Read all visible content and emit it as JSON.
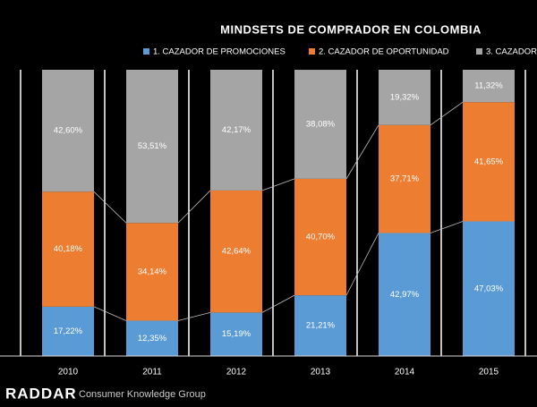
{
  "chart_data": {
    "type": "stacked_bar",
    "title": "MINDSETS DE COMPRADOR EN COLOMBIA",
    "categories": [
      "2010",
      "2011",
      "2012",
      "2013",
      "2014",
      "2015"
    ],
    "ylim": [
      0,
      100
    ],
    "series": [
      {
        "name": "1. CAZADOR DE PROMOCIONES",
        "color": "#5b9bd5",
        "values": [
          17.22,
          12.35,
          15.19,
          21.21,
          42.97,
          47.03
        ],
        "value_labels": [
          "17,22%",
          "12,35%",
          "15,19%",
          "21,21%",
          "42,97%",
          "47,03%"
        ]
      },
      {
        "name": "2. CAZADOR DE OPORTUNIDAD",
        "color": "#ed7d31",
        "values": [
          40.18,
          34.14,
          42.64,
          40.7,
          37.71,
          41.65
        ],
        "value_labels": [
          "40,18%",
          "34,14%",
          "42,64%",
          "40,70%",
          "37,71%",
          "41,65%"
        ]
      },
      {
        "name": "3. CAZADOR",
        "color": "#a5a5a5",
        "values": [
          42.6,
          53.51,
          42.17,
          38.08,
          19.32,
          11.32
        ],
        "value_labels": [
          "42,60%",
          "53,51%",
          "42,17%",
          "38,08%",
          "19,32%",
          "11,32%"
        ]
      }
    ]
  },
  "footer": {
    "logo": "RADDAR",
    "brand": "Consumer Knowledge Group"
  }
}
